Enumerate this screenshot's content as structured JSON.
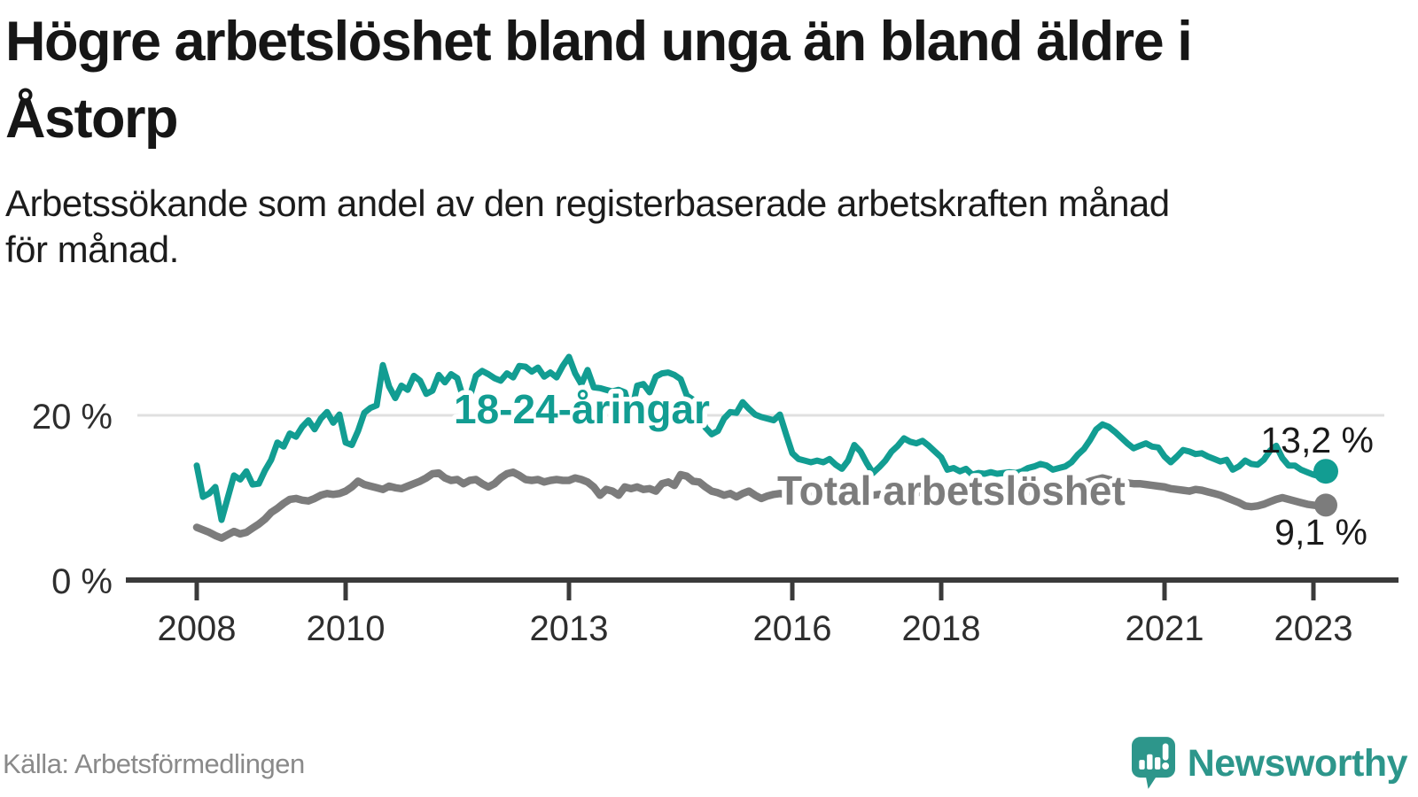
{
  "header": {
    "title_lines": [
      "Högre arbetslöshet bland unga än bland äldre i",
      "Åstorp"
    ],
    "subtitle_lines": [
      "Arbetssökande som andel av den registerbaserade arbetskraften månad",
      "för månad."
    ]
  },
  "chart_data": {
    "type": "line",
    "title": "Högre arbetslöshet bland unga än bland äldre i Åstorp",
    "subtitle": "Arbetssökande som andel av den registerbaserade arbetskraften månad för månad.",
    "frequency": "monthly",
    "x_start_year": 2008,
    "x_end": "2023-03",
    "x_ticks": [
      2008,
      2010,
      2013,
      2016,
      2018,
      2021,
      2023
    ],
    "y_ticks": [
      {
        "value": 20,
        "label": "20 %"
      },
      {
        "value": 0,
        "label": "0 %"
      }
    ],
    "ylim": [
      0,
      29
    ],
    "grid": "y-at-20-only",
    "legend_position": "labels-on-lines",
    "series": [
      {
        "name": "18-24-åringar",
        "color": "#129d92",
        "end_label": "13,2 %",
        "end_value": 13.2,
        "values": [
          13.9,
          10.1,
          10.5,
          11.3,
          7.3,
          10.0,
          12.7,
          12.2,
          13.2,
          11.6,
          11.7,
          13.3,
          14.6,
          16.7,
          16.2,
          17.8,
          17.4,
          18.6,
          19.4,
          18.3,
          19.6,
          20.4,
          19.1,
          20.1,
          16.7,
          16.4,
          18.1,
          20.3,
          20.9,
          21.2,
          26.1,
          23.5,
          22.1,
          23.6,
          23.1,
          24.8,
          24.2,
          22.6,
          23.0,
          24.9,
          24.0,
          25.0,
          24.5,
          22.0,
          22.2,
          24.8,
          25.4,
          25.0,
          24.5,
          24.2,
          25.1,
          24.6,
          26.0,
          25.9,
          25.3,
          25.8,
          24.7,
          25.2,
          24.6,
          26.0,
          27.1,
          25.1,
          23.8,
          25.5,
          23.4,
          23.3,
          23.1,
          22.9,
          23.1,
          22.8,
          20.1,
          23.6,
          23.8,
          22.8,
          24.7,
          25.1,
          25.2,
          24.9,
          24.4,
          22.4,
          21.9,
          20.3,
          18.5,
          17.7,
          18.1,
          19.6,
          20.4,
          20.3,
          21.6,
          20.8,
          20.1,
          19.8,
          19.6,
          19.4,
          20.1,
          17.7,
          15.4,
          14.7,
          14.5,
          14.3,
          14.5,
          14.3,
          14.7,
          14.0,
          13.5,
          14.5,
          16.4,
          15.6,
          14.2,
          13.0,
          13.7,
          14.5,
          15.6,
          16.3,
          17.2,
          16.8,
          16.6,
          16.9,
          16.3,
          15.6,
          14.9,
          13.4,
          13.6,
          13.2,
          13.5,
          12.8,
          13.0,
          12.9,
          13.1,
          12.9,
          13.0,
          13.1,
          13.0,
          13.2,
          13.6,
          13.8,
          14.1,
          13.9,
          13.4,
          13.6,
          13.8,
          14.3,
          15.2,
          15.9,
          17.0,
          18.3,
          18.9,
          18.6,
          18.0,
          17.3,
          16.6,
          16.0,
          16.3,
          16.6,
          16.2,
          16.1,
          15.0,
          14.3,
          15.0,
          15.8,
          15.6,
          15.3,
          15.4,
          15.0,
          14.7,
          14.4,
          14.6,
          13.4,
          13.8,
          14.5,
          14.1,
          14.0,
          14.6,
          15.7,
          16.3,
          14.8,
          13.9,
          13.9,
          13.4,
          13.1,
          12.8,
          12.6,
          13.2
        ]
      },
      {
        "name": "Total arbetslöshet",
        "color": "#7c7c7c",
        "end_label": "9,1 %",
        "end_value": 9.1,
        "values": [
          6.4,
          6.1,
          5.8,
          5.4,
          5.1,
          5.5,
          5.9,
          5.6,
          5.8,
          6.3,
          6.8,
          7.4,
          8.2,
          8.7,
          9.3,
          9.8,
          9.9,
          9.7,
          9.6,
          9.9,
          10.3,
          10.5,
          10.4,
          10.5,
          10.8,
          11.3,
          12.0,
          11.6,
          11.4,
          11.2,
          11.0,
          11.4,
          11.2,
          11.1,
          11.4,
          11.7,
          12.0,
          12.4,
          12.9,
          13.0,
          12.4,
          12.1,
          12.2,
          11.7,
          12.1,
          12.2,
          11.7,
          11.3,
          11.7,
          12.4,
          12.9,
          13.1,
          12.7,
          12.2,
          12.1,
          12.2,
          11.9,
          12.1,
          12.2,
          12.1,
          12.1,
          12.4,
          12.2,
          11.9,
          11.3,
          10.3,
          11.0,
          10.8,
          10.3,
          11.3,
          11.1,
          11.3,
          11.0,
          11.1,
          10.8,
          11.7,
          11.9,
          11.5,
          12.8,
          12.6,
          12.0,
          11.9,
          11.3,
          10.8,
          10.6,
          10.3,
          10.5,
          10.1,
          10.5,
          10.8,
          10.3,
          9.9,
          10.2,
          10.4,
          10.5,
          10.4,
          10.3,
          10.2,
          10.1,
          10.2,
          10.3,
          10.4,
          10.3,
          10.2,
          10.3,
          10.4,
          10.5,
          10.5,
          10.4,
          10.3,
          10.4,
          10.5,
          10.6,
          10.7,
          10.6,
          10.5,
          10.6,
          10.7,
          10.8,
          10.8,
          10.7,
          10.6,
          10.5,
          10.6,
          10.7,
          10.6,
          10.5,
          10.4,
          10.5,
          10.6,
          10.5,
          10.4,
          10.4,
          10.5,
          10.6,
          10.7,
          10.8,
          10.9,
          10.8,
          10.9,
          11.0,
          11.2,
          11.4,
          11.7,
          12.0,
          12.2,
          12.4,
          12.2,
          12.0,
          11.9,
          11.8,
          11.7,
          11.7,
          11.6,
          11.5,
          11.4,
          11.3,
          11.1,
          11.0,
          10.9,
          10.8,
          11.0,
          10.9,
          10.7,
          10.5,
          10.3,
          10.0,
          9.7,
          9.4,
          9.0,
          8.9,
          9.0,
          9.2,
          9.5,
          9.8,
          10.0,
          9.8,
          9.6,
          9.4,
          9.2,
          9.1,
          9.0,
          9.1
        ]
      }
    ]
  },
  "colors": {
    "accent_teal": "#129d92",
    "line_gray": "#7c7c7c",
    "axis": "#3a3a3a",
    "gridline": "#e0e0e0",
    "text_dark": "#161616",
    "source_gray": "#8a8a8a",
    "brand_teal": "#2d968b"
  },
  "footer": {
    "source": "Källa: Arbetsförmedlingen",
    "brand": "Newsworthy"
  }
}
